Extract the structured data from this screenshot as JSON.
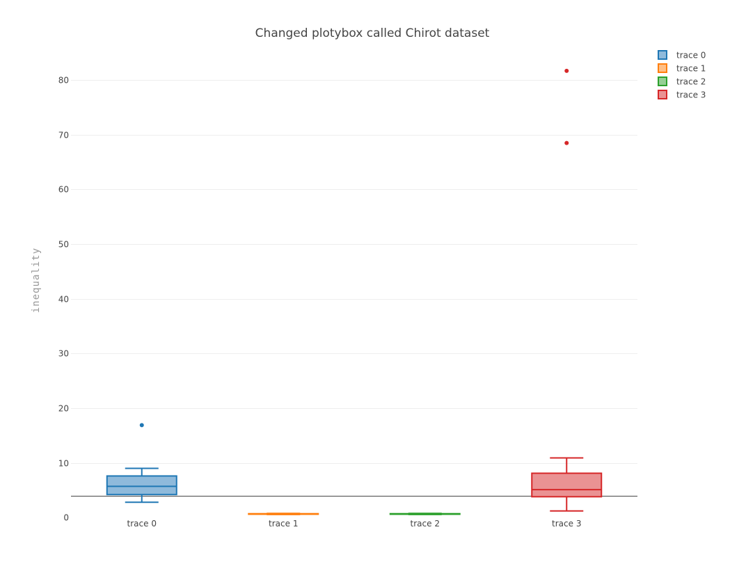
{
  "chart_data": {
    "type": "box",
    "title": "Changed plotybox called Chirot dataset",
    "xlabel": "",
    "ylabel": "inequality",
    "ylim": [
      -1.5,
      85.5
    ],
    "yticks": [
      0,
      10,
      20,
      30,
      40,
      50,
      60,
      70,
      80
    ],
    "grid": true,
    "legend_position": "top-right",
    "series": [
      {
        "name": "trace 0",
        "color": "#1f77b4",
        "fill": "#8fbadb",
        "min": 2.8,
        "q1": 4.2,
        "median": 5.7,
        "q3": 7.6,
        "max": 9.0,
        "outliers": [
          16.9
        ]
      },
      {
        "name": "trace 1",
        "color": "#ff7f0e",
        "fill": "#ffbf86",
        "min": 0.55,
        "q1": 0.6,
        "median": 0.65,
        "q3": 0.7,
        "max": 0.75,
        "outliers": []
      },
      {
        "name": "trace 2",
        "color": "#2ca02c",
        "fill": "#95cf95",
        "min": 0.55,
        "q1": 0.6,
        "median": 0.65,
        "q3": 0.7,
        "max": 0.75,
        "outliers": []
      },
      {
        "name": "trace 3",
        "color": "#d62728",
        "fill": "#ea9293",
        "min": 1.2,
        "q1": 3.8,
        "median": 5.1,
        "q3": 8.1,
        "max": 10.9,
        "outliers": [
          68.5,
          81.7
        ]
      }
    ]
  }
}
